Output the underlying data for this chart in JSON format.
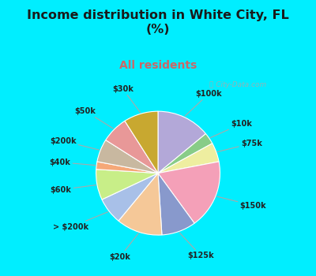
{
  "title": "Income distribution in White City, FL\n(%)",
  "subtitle": "All residents",
  "title_color": "#1a1a1a",
  "subtitle_color": "#cc6666",
  "bg_cyan": "#00eeff",
  "bg_chart": "#c8eedd",
  "watermark": "ⓘ City-Data.com",
  "labels": [
    "$100k",
    "$10k",
    "$75k",
    "$150k",
    "$125k",
    "$20k",
    "> $200k",
    "$60k",
    "$40k",
    "$200k",
    "$50k",
    "$30k"
  ],
  "values": [
    14,
    3,
    5,
    18,
    9,
    12,
    7,
    8,
    2,
    6,
    7,
    9
  ],
  "colors": [
    "#b3a8d8",
    "#88cc88",
    "#eeeea0",
    "#f4a0b8",
    "#8899cc",
    "#f5c898",
    "#a8c0e8",
    "#c8ee88",
    "#f5a878",
    "#c8b8a0",
    "#e89898",
    "#c8a830"
  ],
  "startangle": 90
}
